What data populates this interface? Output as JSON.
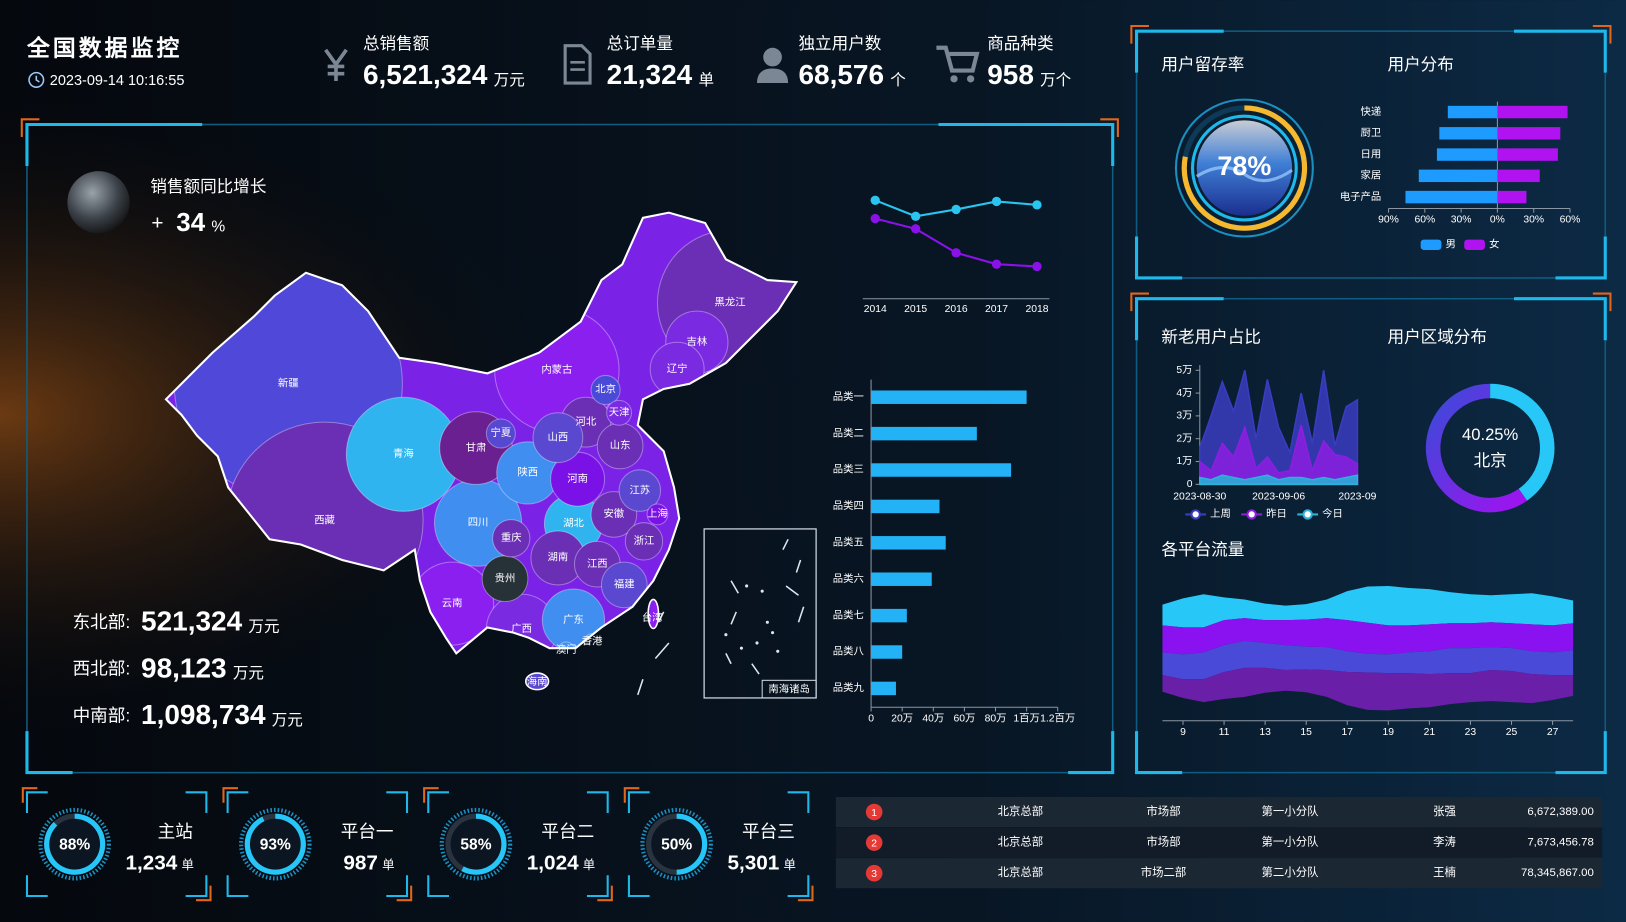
{
  "header": {
    "title": "全国数据监控",
    "time": "2023-09-14 10:16:55"
  },
  "kpis": [
    {
      "label": "总销售额",
      "value": "6,521,324",
      "unit": "万元"
    },
    {
      "label": "总订单量",
      "value": "21,324",
      "unit": "单"
    },
    {
      "label": "独立用户数",
      "value": "68,576",
      "unit": "个"
    },
    {
      "label": "商品种类",
      "value": "958",
      "unit": "万个"
    }
  ],
  "growth": {
    "label": "销售额同比增长",
    "sign": "+",
    "value": 34,
    "unit": "%"
  },
  "regions": [
    {
      "name": "东北部:",
      "value": "521,324",
      "unit": "万元"
    },
    {
      "name": "西北部:",
      "value": "98,123",
      "unit": "万元"
    },
    {
      "name": "中南部:",
      "value": "1,098,734",
      "unit": "万元"
    }
  ],
  "map": {
    "provinces": [
      "新疆",
      "西藏",
      "青海",
      "甘肃",
      "宁夏",
      "内蒙古",
      "黑龙江",
      "吉林",
      "辽宁",
      "北京",
      "天津",
      "河北",
      "山西",
      "山东",
      "陕西",
      "河南",
      "江苏",
      "上海",
      "安徽",
      "湖北",
      "四川",
      "重庆",
      "浙江",
      "湖南",
      "江西",
      "贵州",
      "云南",
      "福建",
      "广西",
      "广东",
      "台湾",
      "澳门",
      "香港",
      "海南"
    ],
    "inset_label": "南海诸岛"
  },
  "chart_data": [
    {
      "type": "line",
      "categories": [
        "2014",
        "2015",
        "2016",
        "2017",
        "2018"
      ],
      "ylim": [
        0,
        100
      ],
      "series": [
        {
          "color": "#29c4f0",
          "values": [
            79,
            65,
            71,
            78,
            75
          ]
        },
        {
          "color": "#8a12e8",
          "values": [
            63,
            54,
            33,
            23,
            21
          ]
        }
      ]
    },
    {
      "type": "hbar",
      "categories": [
        "品类一",
        "品类二",
        "品类三",
        "品类四",
        "品类五",
        "品类六",
        "品类七",
        "品类八",
        "品类九"
      ],
      "values": [
        100,
        68,
        90,
        44,
        48,
        39,
        23,
        20,
        16
      ],
      "color": "#22b2f5",
      "xlim": [
        0,
        120
      ],
      "xticks": [
        0,
        {
          "value": 20,
          "label": "20万"
        },
        {
          "value": 40,
          "label": "40万"
        },
        {
          "value": 60,
          "label": "60万"
        },
        {
          "value": 80,
          "label": "80万"
        },
        {
          "value": 100,
          "label": "1百万"
        },
        {
          "value": 120,
          "label": "1.2百万"
        }
      ]
    },
    {
      "type": "gauge",
      "title": "用户留存率",
      "value": 78,
      "value_label": "78%",
      "color": "#f5b82e"
    },
    {
      "type": "butterfly",
      "title": "用户分布",
      "categories": [
        "快递",
        "厨卫",
        "日用",
        "家居",
        "电子产品"
      ],
      "xlim": [
        -90,
        60
      ],
      "xticks": [
        {
          "value": -90,
          "label": "90%"
        },
        {
          "value": -60,
          "label": "60%"
        },
        {
          "value": -30,
          "label": "30%"
        },
        {
          "value": 0,
          "label": "0%"
        },
        {
          "value": 30,
          "label": "30%"
        },
        {
          "value": 60,
          "label": "60%"
        }
      ],
      "series": [
        {
          "name": "男",
          "color": "#1e9bff",
          "values": [
            41,
            48,
            50,
            65,
            76
          ]
        },
        {
          "name": "女",
          "color": "#b012f0",
          "values": [
            58,
            52,
            50,
            35,
            24
          ]
        }
      ]
    },
    {
      "type": "area",
      "title": "新老用户占比",
      "categories": [
        "2023-08-30",
        null,
        null,
        null,
        null,
        null,
        null,
        "2023-09-06",
        null,
        null,
        null,
        null,
        null,
        null,
        "2023-09"
      ],
      "ylim": [
        0,
        5
      ],
      "yticks": [
        0,
        {
          "value": 1,
          "label": "1万"
        },
        {
          "value": 2,
          "label": "2万"
        },
        {
          "value": 3,
          "label": "3万"
        },
        {
          "value": 4,
          "label": "4万"
        },
        {
          "value": 5,
          "label": "5万"
        }
      ],
      "series": [
        {
          "name": "上周",
          "color": "#3a3cc0",
          "values": [
            1.6,
            3.0,
            4.5,
            3.2,
            5.0,
            2.0,
            4.6,
            2.5,
            1.4,
            4.0,
            1.8,
            5.0,
            1.7,
            3.4,
            3.7
          ]
        },
        {
          "name": "昨日",
          "color": "#8b1fe0",
          "values": [
            1.0,
            0.6,
            1.8,
            1.2,
            2.5,
            0.7,
            1.2,
            0.5,
            0.6,
            2.6,
            0.6,
            1.9,
            1.3,
            1.2,
            0.9
          ]
        },
        {
          "name": "今日",
          "color": "#2ab3d8",
          "values": [
            0.3,
            0.2,
            0.4,
            0.3,
            0.2,
            0.3,
            0.4,
            0.2,
            0.3,
            0.3,
            0.2,
            0.3,
            0.2,
            0.3,
            0.4
          ]
        }
      ]
    },
    {
      "type": "donut",
      "title": "用户区域分布",
      "value": 40.25,
      "value_label": "40.25%",
      "name": "北京",
      "color": "#27c8f8"
    },
    {
      "type": "stream",
      "title": "各平台流量",
      "x": [
        8,
        9,
        10,
        11,
        12,
        13,
        14,
        15,
        16,
        17,
        18,
        19,
        20,
        21,
        22,
        23,
        24,
        25,
        26,
        27,
        28
      ],
      "xlim": [
        8,
        28
      ],
      "xticks": [
        9,
        11,
        13,
        15,
        17,
        19,
        21,
        23,
        25,
        27
      ],
      "ylim": [
        -75,
        75
      ],
      "series": [
        {
          "color": "#27c8f8",
          "values": [
            20,
            28,
            32,
            22,
            18,
            16,
            14,
            15,
            18,
            28,
            35,
            38,
            36,
            34,
            30,
            28,
            26,
            28,
            30,
            28,
            22
          ]
        },
        {
          "color": "#8a12f0",
          "values": [
            26,
            26,
            24,
            24,
            22,
            22,
            24,
            26,
            28,
            30,
            30,
            28,
            26,
            26,
            24,
            24,
            24,
            24,
            26,
            26,
            26
          ]
        },
        {
          "color": "#4a4ad8",
          "values": [
            22,
            24,
            26,
            26,
            26,
            24,
            24,
            22,
            22,
            20,
            18,
            18,
            20,
            22,
            24,
            24,
            22,
            22,
            22,
            22,
            24
          ]
        },
        {
          "color": "#6a1fa8",
          "values": [
            16,
            18,
            22,
            26,
            28,
            24,
            20,
            22,
            26,
            32,
            36,
            36,
            34,
            32,
            30,
            28,
            30,
            30,
            28,
            24,
            20
          ]
        }
      ]
    }
  ],
  "platforms": [
    {
      "name": "主站",
      "percent": 88,
      "percent_label": "88%",
      "count": "1,234",
      "unit": "单"
    },
    {
      "name": "平台一",
      "percent": 93,
      "percent_label": "93%",
      "count": "987",
      "unit": "单"
    },
    {
      "name": "平台二",
      "percent": 58,
      "percent_label": "58%",
      "count": "1,024",
      "unit": "单"
    },
    {
      "name": "平台三",
      "percent": 50,
      "percent_label": "50%",
      "count": "5,301",
      "unit": "单"
    }
  ],
  "table": {
    "rows": [
      [
        "1",
        "北京总部",
        "市场部",
        "第一小分队",
        "张强",
        "6,672,389.00"
      ],
      [
        "2",
        "北京总部",
        "市场部",
        "第一小分队",
        "李涛",
        "7,673,456.78"
      ],
      [
        "3",
        "北京总部",
        "市场二部",
        "第二小分队",
        "王楠",
        "78,345,867.00"
      ]
    ]
  }
}
